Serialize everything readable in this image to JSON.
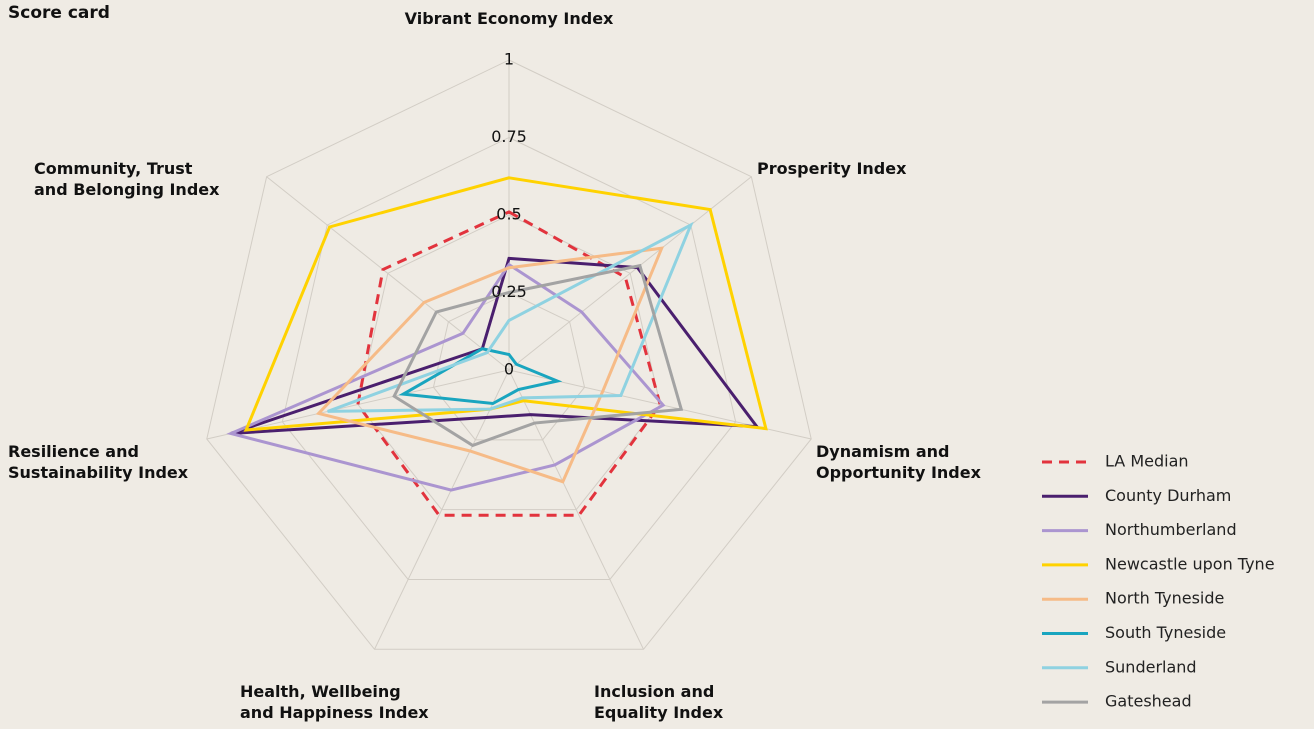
{
  "chart_data": {
    "type": "radar",
    "title": "Score card",
    "categories": [
      [
        "Vibrant Economy Index"
      ],
      [
        "Prosperity Index"
      ],
      [
        "Dynamism and",
        "Opportunity Index"
      ],
      [
        "Inclusion and",
        "Equality Index"
      ],
      [
        "Health, Wellbeing",
        "and Happiness Index"
      ],
      [
        "Resilience and",
        "Sustainability Index"
      ],
      [
        "Community, Trust",
        "and Belonging Index"
      ]
    ],
    "ylim": [
      0,
      1
    ],
    "yticks": [
      0,
      0.25,
      0.5,
      0.75,
      1
    ],
    "grid": true,
    "legend": "right",
    "series": [
      {
        "name": "LA Median",
        "color": "#e2333d",
        "style": "dashed",
        "values": [
          0.51,
          0.48,
          0.5,
          0.52,
          0.52,
          0.5,
          0.52
        ]
      },
      {
        "name": "County Durham",
        "color": "#4a1f6e",
        "values": [
          0.36,
          0.53,
          0.82,
          0.16,
          0.17,
          0.92,
          0.11
        ]
      },
      {
        "name": "Northumberland",
        "color": "#ab95d0",
        "values": [
          0.34,
          0.3,
          0.51,
          0.34,
          0.43,
          0.92,
          0.19
        ]
      },
      {
        "name": "Newcastle upon Tyne",
        "color": "#ffd200",
        "values": [
          0.62,
          0.83,
          0.85,
          0.11,
          0.14,
          0.87,
          0.74
        ]
      },
      {
        "name": "North Tyneside",
        "color": "#f6bb87",
        "values": [
          0.33,
          0.63,
          0.31,
          0.4,
          0.29,
          0.63,
          0.35
        ]
      },
      {
        "name": "South Tyneside",
        "color": "#19a5bf",
        "values": [
          0.05,
          0.03,
          0.16,
          0.07,
          0.12,
          0.35,
          0.11
        ]
      },
      {
        "name": "Sunderland",
        "color": "#8fd2e1",
        "values": [
          0.16,
          0.75,
          0.37,
          0.1,
          0.14,
          0.6,
          0.09
        ]
      },
      {
        "name": "Gateshead",
        "color": "#a3a3a3",
        "values": [
          0.25,
          0.54,
          0.57,
          0.19,
          0.27,
          0.38,
          0.3
        ]
      }
    ]
  }
}
